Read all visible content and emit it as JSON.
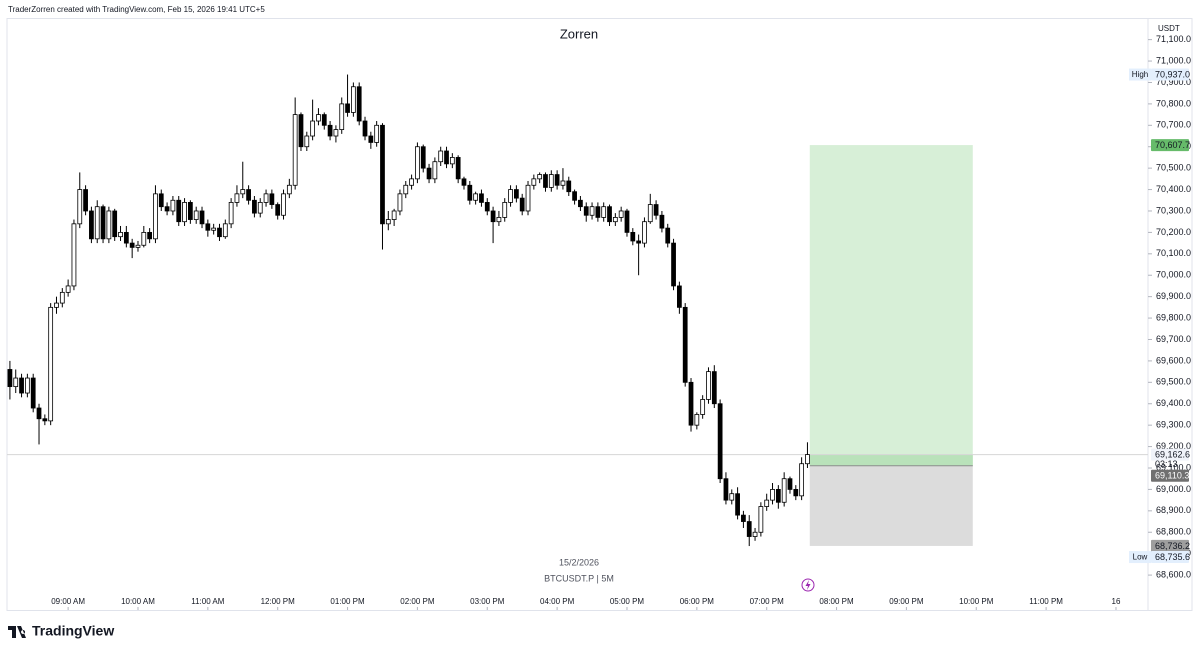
{
  "header": {
    "caption": "TraderZorren created with TradingView.com, Feb 15, 2026 19:41 UTC+5",
    "brand": "TradingView"
  },
  "chart_data": {
    "type": "candlestick",
    "title": "Zorren",
    "currency": "USDT",
    "date_label": "15/2/2026",
    "symbol_label": "BTCUSDT.P | 5M",
    "up_color": "#ffffff",
    "down_color": "#000000",
    "border_color": "#000000",
    "grid": false,
    "open": [
      69560,
      69480,
      69520,
      69450,
      69520,
      69380,
      69330,
      69320,
      69850,
      69870,
      69920,
      69950,
      70240,
      70400,
      70300,
      70170,
      70320,
      70170,
      70300,
      70180,
      70200,
      70150,
      70130,
      70140,
      70200,
      70170,
      70380,
      70320,
      70300,
      70350,
      70250,
      70340,
      70260,
      70300,
      70240,
      70210,
      70220,
      70180,
      70240,
      70340,
      70380,
      70400,
      70350,
      70290,
      70340,
      70380,
      70330,
      70280,
      70380,
      70420,
      70750,
      70600,
      70650,
      70720,
      70750,
      70700,
      70650,
      70680,
      70800,
      70760,
      70880,
      70720,
      70650,
      70620,
      70700,
      70240,
      70260,
      70300,
      70380,
      70420,
      70450,
      70600,
      70500,
      70450,
      70530,
      70580,
      70520,
      70550,
      70450,
      70420,
      70350,
      70380,
      70340,
      70300,
      70250,
      70270,
      70340,
      70400,
      70360,
      70300,
      70420,
      70450,
      70470,
      70410,
      70470,
      70420,
      70440,
      70390,
      70350,
      70320,
      70280,
      70320,
      70270,
      70320,
      70250,
      70270,
      70300,
      70200,
      70160,
      70150,
      70250,
      70330,
      70280,
      70220,
      70150,
      69950,
      69850,
      69500,
      69300,
      69350,
      69420,
      69550,
      69400,
      69050,
      68950,
      68980,
      68880,
      68850,
      68780,
      68800,
      68920,
      68950,
      69000,
      68940,
      69050,
      69000,
      68970,
      69120
    ],
    "high": [
      69600,
      69560,
      69540,
      69540,
      69540,
      69400,
      69350,
      69870,
      69900,
      69940,
      69980,
      70260,
      70480,
      70420,
      70320,
      70350,
      70330,
      70320,
      70310,
      70230,
      70230,
      70170,
      70160,
      70230,
      70220,
      70420,
      70400,
      70340,
      70370,
      70370,
      70360,
      70350,
      70320,
      70320,
      70260,
      70240,
      70240,
      70260,
      70360,
      70420,
      70530,
      70420,
      70370,
      70360,
      70400,
      70400,
      70340,
      70400,
      70450,
      70830,
      70760,
      70670,
      70820,
      70780,
      70760,
      70720,
      70700,
      70830,
      70937,
      70900,
      70900,
      70740,
      70670,
      70720,
      70710,
      70300,
      70310,
      70400,
      70440,
      70470,
      70620,
      70610,
      70520,
      70550,
      70600,
      70600,
      70570,
      70560,
      70460,
      70440,
      70390,
      70400,
      70360,
      70320,
      70300,
      70360,
      70420,
      70420,
      70380,
      70440,
      70470,
      70480,
      70480,
      70490,
      70490,
      70500,
      70460,
      70400,
      70370,
      70340,
      70340,
      70340,
      70340,
      70330,
      70290,
      70320,
      70310,
      70220,
      70190,
      70270,
      70380,
      70350,
      70300,
      70240,
      70170,
      69970,
      69870,
      69520,
      69360,
      69440,
      69570,
      69580,
      69420,
      69080,
      69000,
      69010,
      68900,
      68880,
      68820,
      68940,
      68980,
      69030,
      69020,
      69080,
      69060,
      69020,
      69150,
      69220
    ],
    "low": [
      69420,
      69450,
      69430,
      69430,
      69360,
      69210,
      69300,
      69300,
      69820,
      69850,
      69900,
      69930,
      70220,
      70280,
      70150,
      70150,
      70150,
      70150,
      70160,
      70160,
      70130,
      70080,
      70110,
      70130,
      70150,
      70150,
      70300,
      70280,
      70280,
      70230,
      70230,
      70240,
      70240,
      70220,
      70180,
      70190,
      70160,
      70170,
      70220,
      70320,
      70360,
      70330,
      70270,
      70270,
      70320,
      70310,
      70260,
      70260,
      70360,
      70400,
      70580,
      70580,
      70630,
      70700,
      70680,
      70630,
      70620,
      70660,
      70740,
      70740,
      70700,
      70630,
      70590,
      70600,
      70120,
      70210,
      70230,
      70280,
      70360,
      70400,
      70430,
      70480,
      70430,
      70430,
      70510,
      70500,
      70500,
      70430,
      70400,
      70330,
      70330,
      70320,
      70280,
      70150,
      70230,
      70250,
      70320,
      70340,
      70280,
      70280,
      70400,
      70430,
      70390,
      70390,
      70400,
      70400,
      70370,
      70330,
      70300,
      70250,
      70260,
      70250,
      70250,
      70230,
      70230,
      70250,
      70180,
      70140,
      70000,
      70130,
      70240,
      70260,
      70200,
      70130,
      69930,
      69820,
      69480,
      69270,
      69280,
      69330,
      69400,
      69380,
      69030,
      68930,
      68930,
      68860,
      68820,
      68735.6,
      68760,
      68780,
      68900,
      68930,
      68910,
      68920,
      68980,
      68950,
      68950,
      69100
    ],
    "close": [
      69480,
      69520,
      69450,
      69520,
      69380,
      69330,
      69320,
      69850,
      69870,
      69920,
      69950,
      70240,
      70400,
      70300,
      70170,
      70320,
      70170,
      70300,
      70180,
      70200,
      70150,
      70130,
      70140,
      70200,
      70170,
      70380,
      70320,
      70300,
      70350,
      70250,
      70340,
      70260,
      70300,
      70240,
      70210,
      70220,
      70180,
      70240,
      70340,
      70380,
      70400,
      70350,
      70290,
      70340,
      70380,
      70330,
      70280,
      70380,
      70420,
      70750,
      70600,
      70650,
      70720,
      70750,
      70700,
      70650,
      70680,
      70800,
      70760,
      70880,
      70720,
      70650,
      70620,
      70700,
      70240,
      70260,
      70300,
      70380,
      70420,
      70450,
      70600,
      70500,
      70450,
      70530,
      70580,
      70520,
      70550,
      70450,
      70420,
      70350,
      70380,
      70340,
      70300,
      70250,
      70270,
      70340,
      70400,
      70360,
      70300,
      70420,
      70450,
      70470,
      70410,
      70470,
      70420,
      70440,
      70390,
      70350,
      70320,
      70280,
      70320,
      70270,
      70320,
      70250,
      70270,
      70300,
      70200,
      70160,
      70150,
      70250,
      70330,
      70280,
      70220,
      70150,
      69950,
      69850,
      69500,
      69300,
      69350,
      69420,
      69550,
      69400,
      69050,
      68950,
      68980,
      68880,
      68850,
      68780,
      68800,
      68920,
      68950,
      69000,
      68940,
      69050,
      69000,
      68970,
      69120,
      69162.6
    ],
    "xlim": [
      -0.5,
      195.5
    ],
    "xticks": [
      {
        "value": 10,
        "label": "09:00 AM"
      },
      {
        "value": 22,
        "label": "10:00 AM"
      },
      {
        "value": 34,
        "label": "11:00 AM"
      },
      {
        "value": 46,
        "label": "12:00 PM"
      },
      {
        "value": 58,
        "label": "01:00 PM"
      },
      {
        "value": 70,
        "label": "02:00 PM"
      },
      {
        "value": 82,
        "label": "03:00 PM"
      },
      {
        "value": 94,
        "label": "04:00 PM"
      },
      {
        "value": 106,
        "label": "05:00 PM"
      },
      {
        "value": 118,
        "label": "06:00 PM"
      },
      {
        "value": 130,
        "label": "07:00 PM"
      },
      {
        "value": 142,
        "label": "08:00 PM"
      },
      {
        "value": 154,
        "label": "09:00 PM"
      },
      {
        "value": 166,
        "label": "10:00 PM"
      },
      {
        "value": 178,
        "label": "11:00 PM"
      },
      {
        "value": 190,
        "label": "16"
      }
    ],
    "ylim": [
      68437,
      71201
    ],
    "yticks": [
      {
        "value": 68600,
        "label": "68,600.0"
      },
      {
        "value": 68700,
        "label": "68,700.0"
      },
      {
        "value": 68800,
        "label": "68,800.0"
      },
      {
        "value": 68900,
        "label": "68,900.0"
      },
      {
        "value": 69000,
        "label": "69,000.0"
      },
      {
        "value": 69100,
        "label": "69,100.0"
      },
      {
        "value": 69200,
        "label": "69,200.0"
      },
      {
        "value": 69300,
        "label": "69,300.0"
      },
      {
        "value": 69400,
        "label": "69,400.0"
      },
      {
        "value": 69500,
        "label": "69,500.0"
      },
      {
        "value": 69600,
        "label": "69,600.0"
      },
      {
        "value": 69700,
        "label": "69,700.0"
      },
      {
        "value": 69800,
        "label": "69,800.0"
      },
      {
        "value": 69900,
        "label": "69,900.0"
      },
      {
        "value": 70000,
        "label": "70,000.0"
      },
      {
        "value": 70100,
        "label": "70,100.0"
      },
      {
        "value": 70200,
        "label": "70,200.0"
      },
      {
        "value": 70300,
        "label": "70,300.0"
      },
      {
        "value": 70400,
        "label": "70,400.0"
      },
      {
        "value": 70500,
        "label": "70,500.0"
      },
      {
        "value": 70600,
        "label": "70,600.0"
      },
      {
        "value": 70700,
        "label": "70,700.0"
      },
      {
        "value": 70800,
        "label": "70,800.0"
      },
      {
        "value": 70900,
        "label": "70,900.0"
      },
      {
        "value": 71000,
        "label": "71,000.0"
      },
      {
        "value": 71100,
        "label": "71,100.0"
      }
    ],
    "high_marker": {
      "label": "High",
      "value": 70937.0,
      "value_label": "70,937.0"
    },
    "low_marker": {
      "label": "Low",
      "value": 68735.6,
      "value_label": "68,735.6"
    },
    "last_price": {
      "value": 69162.6,
      "value_label": "69,162.6",
      "countdown": "03:13"
    },
    "position": {
      "target": 70607.7,
      "target_label": "70,607.7",
      "entry": 69110.3,
      "entry_label": "69,110.3",
      "stop": 68736.2,
      "stop_label": "68,736.2",
      "target_color": "#d7efd7",
      "live_color": "#b9e2ba",
      "stop_color": "#dcdcdc"
    }
  }
}
